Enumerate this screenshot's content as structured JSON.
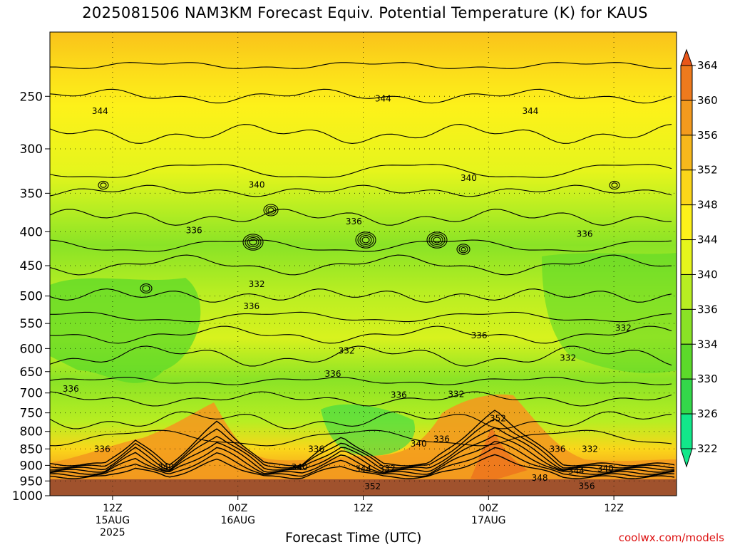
{
  "chart_data": {
    "type": "heatmap",
    "title": "2025081506 NAM3KM Forecast Equiv. Potential Temperature (K) for KAUS",
    "xlabel": "Forecast Time (UTC)",
    "credit": "coolwx.com/models",
    "y_axis": {
      "ticks": [
        "250",
        "300",
        "350",
        "400",
        "450",
        "500",
        "550",
        "600",
        "650",
        "700",
        "750",
        "800",
        "850",
        "900",
        "950",
        "1000"
      ],
      "range": [
        1000,
        200
      ],
      "scale": "log-pressure"
    },
    "x_axis": {
      "ticks": [
        {
          "label": "12Z",
          "sub": "15AUG",
          "sub2": "2025",
          "hours": 6
        },
        {
          "label": "00Z",
          "sub": "16AUG",
          "sub2": "",
          "hours": 18
        },
        {
          "label": "12Z",
          "sub": "",
          "sub2": "",
          "hours": 30
        },
        {
          "label": "00Z",
          "sub": "17AUG",
          "sub2": "",
          "hours": 42
        },
        {
          "label": "12Z",
          "sub": "",
          "sub2": "",
          "hours": 54
        }
      ],
      "range_hours": [
        0,
        60
      ]
    },
    "colorbar": {
      "levels": [
        "364",
        "360",
        "356",
        "352",
        "348",
        "344",
        "340",
        "336",
        "334",
        "330",
        "326",
        "322"
      ],
      "colors": [
        "#e8561a",
        "#ee7a1d",
        "#f39a1e",
        "#f7b81c",
        "#fbd61a",
        "#fdf11a",
        "#e6f51c",
        "#b8ee22",
        "#8ae326",
        "#5cd92a",
        "#34d84a",
        "#12e88a"
      ]
    },
    "contour_labels": [
      {
        "text": "344",
        "p": 263,
        "h": 4.8
      },
      {
        "text": "344",
        "p": 252,
        "h": 31.9
      },
      {
        "text": "344",
        "p": 263,
        "h": 46.0
      },
      {
        "text": "340",
        "p": 340,
        "h": 19.8
      },
      {
        "text": "340",
        "p": 332,
        "h": 40.1
      },
      {
        "text": "336",
        "p": 398,
        "h": 13.8
      },
      {
        "text": "336",
        "p": 386,
        "h": 29.1
      },
      {
        "text": "336",
        "p": 403,
        "h": 51.2
      },
      {
        "text": "332",
        "p": 480,
        "h": 19.8
      },
      {
        "text": "336",
        "p": 518,
        "h": 19.3
      },
      {
        "text": "336",
        "p": 573,
        "h": 41.1
      },
      {
        "text": "332",
        "p": 559,
        "h": 54.9
      },
      {
        "text": "332",
        "p": 605,
        "h": 28.4
      },
      {
        "text": "332",
        "p": 620,
        "h": 49.6
      },
      {
        "text": "336",
        "p": 655,
        "h": 27.1
      },
      {
        "text": "336",
        "p": 690,
        "h": 2.0
      },
      {
        "text": "336",
        "p": 705,
        "h": 33.4
      },
      {
        "text": "332",
        "p": 703,
        "h": 38.9
      },
      {
        "text": "352",
        "p": 765,
        "h": 42.9
      },
      {
        "text": "336",
        "p": 822,
        "h": 37.5
      },
      {
        "text": "340",
        "p": 835,
        "h": 35.3
      },
      {
        "text": "336",
        "p": 851,
        "h": 5.0
      },
      {
        "text": "336",
        "p": 851,
        "h": 25.5
      },
      {
        "text": "336",
        "p": 851,
        "h": 48.6
      },
      {
        "text": "332",
        "p": 851,
        "h": 51.7
      },
      {
        "text": "340",
        "p": 906,
        "h": 11.1
      },
      {
        "text": "340",
        "p": 906,
        "h": 23.9
      },
      {
        "text": "344",
        "p": 912,
        "h": 30.0
      },
      {
        "text": "332",
        "p": 910,
        "h": 32.3
      },
      {
        "text": "344",
        "p": 917,
        "h": 50.4
      },
      {
        "text": "340",
        "p": 910,
        "h": 53.2
      },
      {
        "text": "348",
        "p": 940,
        "h": 46.9
      },
      {
        "text": "352",
        "p": 968,
        "h": 30.9
      },
      {
        "text": "356",
        "p": 967,
        "h": 51.4
      }
    ]
  }
}
